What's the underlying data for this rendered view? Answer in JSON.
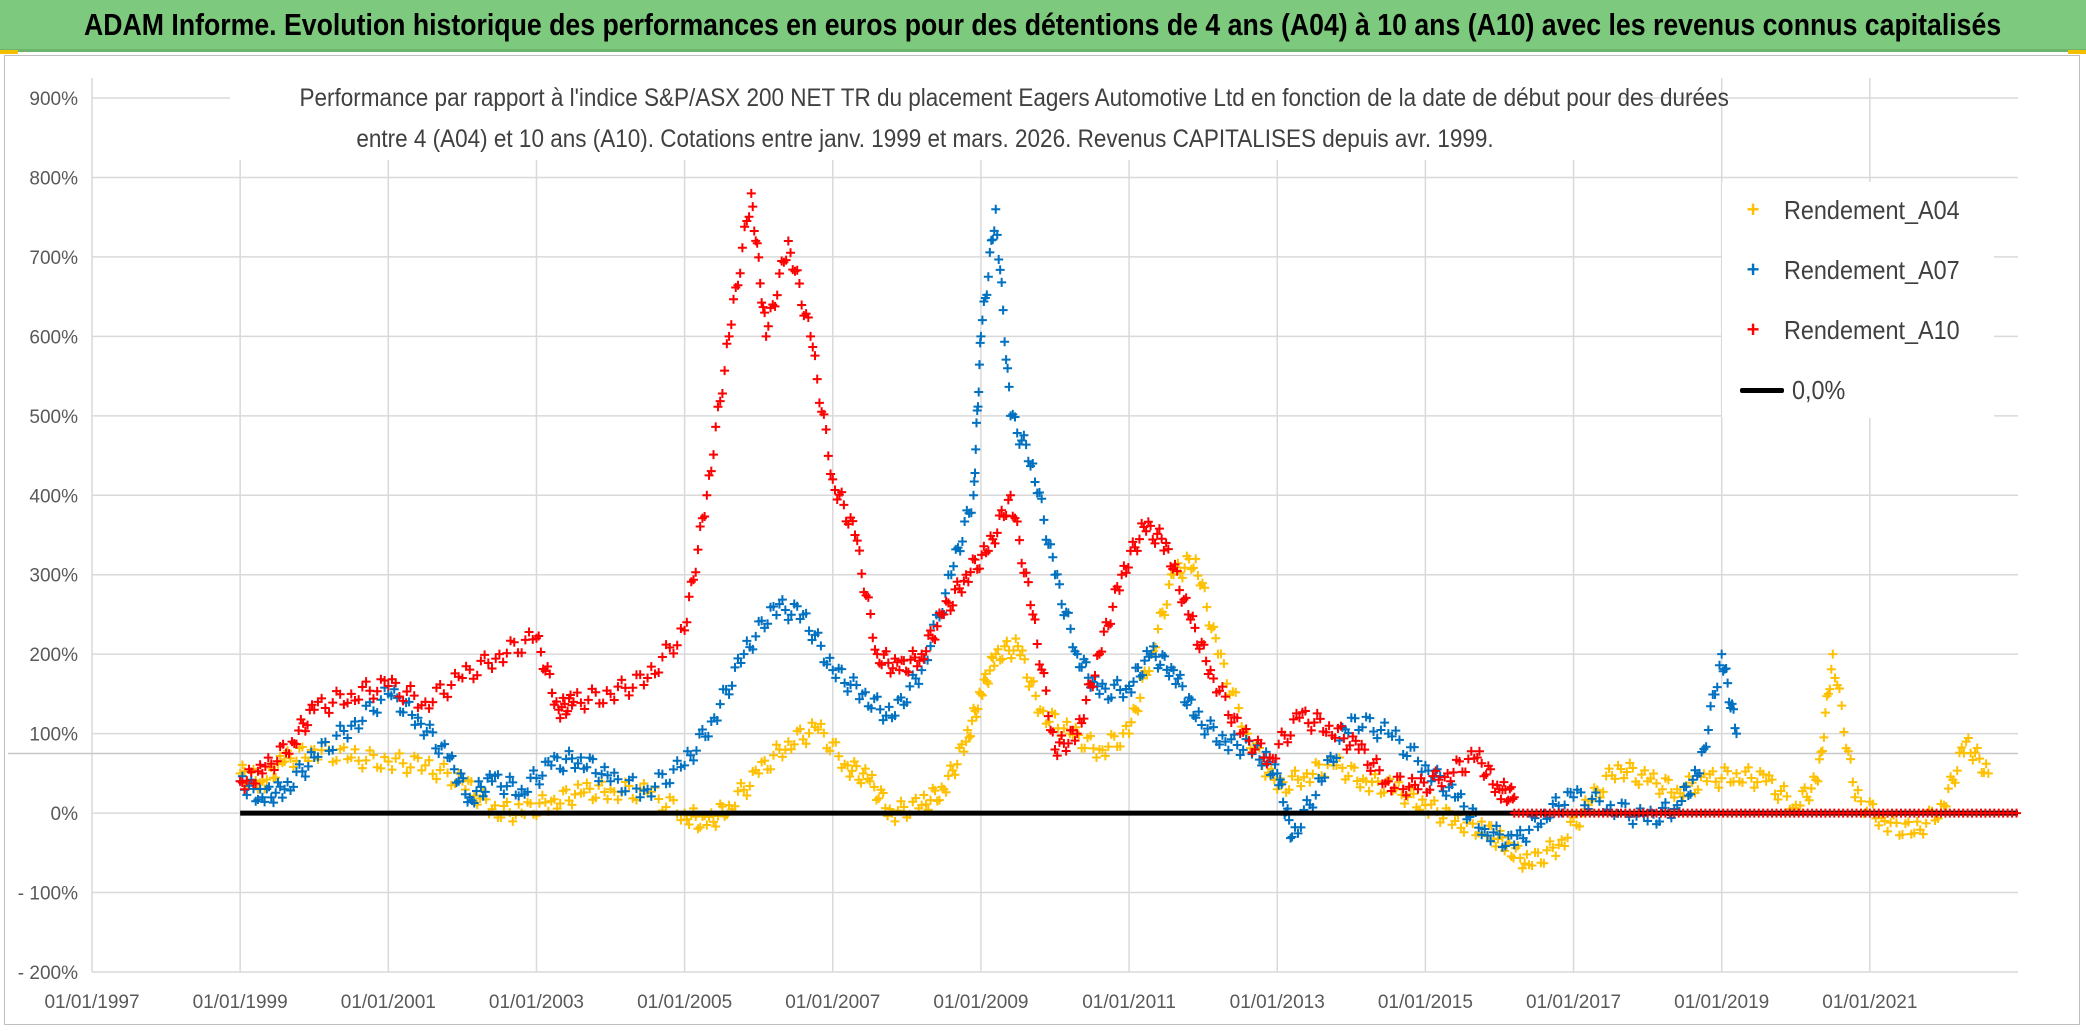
{
  "banner": {
    "title": "ADAM Informe. Evolution historique des performances en euros pour des détentions de 4 ans (A04) à 10 ans (A10) avec les revenus connus capitalisés"
  },
  "colors": {
    "banner_bg": "#7dc97e",
    "A04": "#ffc000",
    "A07": "#0070c0",
    "A10": "#ff0000",
    "zero_line": "#000000",
    "grid": "#d9d9d9"
  },
  "chart_data": {
    "type": "scatter",
    "title_line1": "Performance par rapport à l'indice S&P/ASX 200 NET TR  du placement Eagers Automotive Ltd en fonction de la date de début pour des durées",
    "title_line2": "entre 4 (A04) et 10 ans (A10). Cotations entre janv. 1999 et mars. 2026. Revenus CAPITALISES depuis avr. 1999.",
    "x_ticks": [
      "01/01/1997",
      "01/01/1999",
      "01/01/2001",
      "01/01/2003",
      "01/01/2005",
      "01/01/2007",
      "01/01/2009",
      "01/01/2011",
      "01/01/2013",
      "01/01/2015",
      "01/01/2017",
      "01/01/2019",
      "01/01/2021"
    ],
    "y_ticks": [
      "900%",
      "800%",
      "700%",
      "600%",
      "500%",
      "400%",
      "300%",
      "200%",
      "100%",
      "0%",
      "- 100%",
      "- 200%"
    ],
    "xlim": [
      1997.0,
      2023.0
    ],
    "ylim": [
      -200,
      900
    ],
    "grid": true,
    "legend_position": "top-right",
    "series": [
      {
        "name": "Rendement_A04",
        "marker": "+",
        "x": [
          1999.0,
          1999.3,
          1999.6,
          2000.0,
          2000.5,
          2001.0,
          2001.5,
          2002.0,
          2002.4,
          2002.8,
          2003.2,
          2003.6,
          2004.0,
          2004.5,
          2005.0,
          2005.3,
          2005.6,
          2006.0,
          2006.4,
          2006.8,
          2007.2,
          2007.5,
          2007.8,
          2008.2,
          2008.5,
          2008.8,
          2009.0,
          2009.2,
          2009.5,
          2009.8,
          2010.2,
          2010.6,
          2011.0,
          2011.3,
          2011.6,
          2011.9,
          2012.2,
          2012.6,
          2013.0,
          2013.4,
          2013.8,
          2014.2,
          2014.6,
          2015.0,
          2015.4,
          2015.8,
          2016.1,
          2016.4,
          2016.8,
          2017.2,
          2017.6,
          2018.0,
          2018.4,
          2018.8,
          2019.2,
          2019.6,
          2020.0,
          2020.3,
          2020.5,
          2020.8,
          2021.2,
          2021.6,
          2022.0,
          2022.3,
          2022.6
        ],
        "y": [
          50,
          40,
          65,
          80,
          70,
          65,
          60,
          40,
          5,
          0,
          15,
          25,
          30,
          25,
          0,
          -15,
          10,
          50,
          90,
          105,
          60,
          40,
          0,
          10,
          30,
          90,
          150,
          200,
          210,
          130,
          100,
          80,
          100,
          200,
          300,
          320,
          200,
          100,
          30,
          50,
          60,
          40,
          30,
          10,
          -10,
          -20,
          -40,
          -65,
          -40,
          10,
          60,
          40,
          30,
          40,
          50,
          40,
          10,
          40,
          200,
          20,
          -10,
          -25,
          10,
          90,
          50
        ]
      },
      {
        "name": "Rendement_A07",
        "marker": "+",
        "x": [
          1999.0,
          1999.3,
          1999.6,
          2000.0,
          2000.5,
          2001.0,
          2001.4,
          2001.8,
          2002.1,
          2002.4,
          2002.8,
          2003.2,
          2003.6,
          2004.0,
          2004.5,
          2005.0,
          2005.4,
          2005.8,
          2006.2,
          2006.6,
          2007.0,
          2007.4,
          2007.8,
          2008.2,
          2008.6,
          2008.9,
          2009.0,
          2009.2,
          2009.4,
          2009.7,
          2010.0,
          2010.3,
          2010.6,
          2011.0,
          2011.3,
          2011.6,
          2011.9,
          2012.3,
          2012.7,
          2013.0,
          2013.2,
          2013.6,
          2014.0,
          2014.5,
          2015.0,
          2015.4,
          2015.8,
          2016.2,
          2016.6,
          2017.0,
          2017.5,
          2018.0,
          2018.4,
          2018.7,
          2019.0,
          2019.2
        ],
        "y": [
          40,
          20,
          30,
          70,
          110,
          150,
          120,
          70,
          20,
          40,
          30,
          60,
          70,
          40,
          30,
          60,
          120,
          200,
          260,
          250,
          180,
          150,
          120,
          180,
          300,
          400,
          600,
          760,
          500,
          440,
          300,
          200,
          150,
          160,
          200,
          180,
          120,
          90,
          80,
          50,
          -30,
          40,
          120,
          100,
          60,
          20,
          -20,
          -40,
          0,
          20,
          10,
          -10,
          10,
          50,
          200,
          100
        ]
      },
      {
        "name": "Rendement_A10",
        "marker": "+",
        "x": [
          1999.0,
          1999.3,
          1999.7,
          2000.0,
          2000.5,
          2001.0,
          2001.5,
          2002.0,
          2002.5,
          2003.0,
          2003.3,
          2003.5,
          2004.0,
          2004.5,
          2005.0,
          2005.3,
          2005.6,
          2005.9,
          2006.1,
          2006.4,
          2006.7,
          2007.0,
          2007.3,
          2007.6,
          2007.9,
          2008.2,
          2008.5,
          2008.8,
          2009.1,
          2009.4,
          2009.7,
          2010.0,
          2010.3,
          2010.6,
          2010.9,
          2011.2,
          2011.5,
          2011.8,
          2012.1,
          2012.5,
          2012.9,
          2013.3,
          2013.7,
          2014.1,
          2014.5,
          2014.9,
          2015.3,
          2015.7,
          2016.0,
          2016.2
        ],
        "y": [
          40,
          50,
          90,
          130,
          150,
          160,
          140,
          170,
          200,
          220,
          130,
          140,
          150,
          170,
          230,
          400,
          600,
          780,
          600,
          720,
          600,
          420,
          350,
          200,
          180,
          200,
          250,
          300,
          330,
          400,
          250,
          80,
          100,
          200,
          300,
          360,
          340,
          250,
          180,
          100,
          70,
          120,
          110,
          80,
          40,
          30,
          50,
          70,
          30,
          20
        ]
      }
    ],
    "reference_line": {
      "name": "0,0%",
      "y": 0,
      "x_start": 1999.0,
      "x_end": 2023.0
    }
  }
}
